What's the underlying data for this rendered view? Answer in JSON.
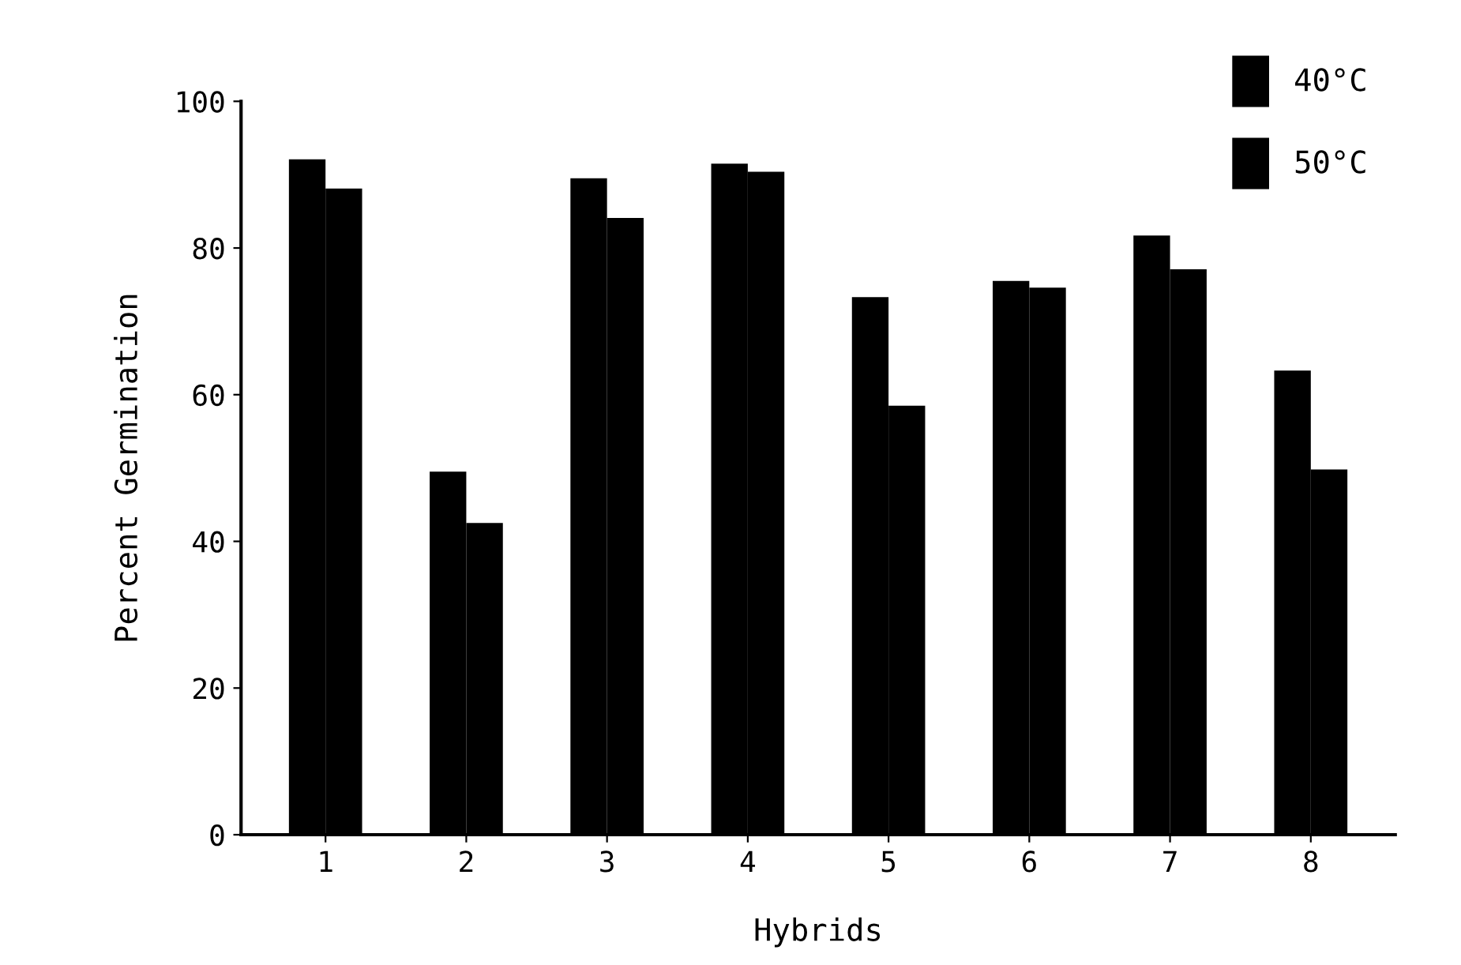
{
  "chart_data": {
    "type": "bar",
    "xlabel": "Hybrids",
    "ylabel": "Percent Germination",
    "categories": [
      "1",
      "2",
      "3",
      "4",
      "5",
      "6",
      "7",
      "8"
    ],
    "series": [
      {
        "name": "40°C",
        "color": "#000000",
        "values": [
          92.1,
          49.5,
          89.5,
          91.5,
          73.3,
          75.5,
          81.7,
          63.3
        ]
      },
      {
        "name": "50°C",
        "color": "#000000",
        "values": [
          88.1,
          42.5,
          84.1,
          90.4,
          58.5,
          74.6,
          77.1,
          49.8
        ]
      }
    ],
    "ylim": [
      0,
      100
    ],
    "yticks": [
      0,
      20,
      40,
      60,
      80,
      100
    ],
    "grid": false,
    "legend": "top right"
  }
}
